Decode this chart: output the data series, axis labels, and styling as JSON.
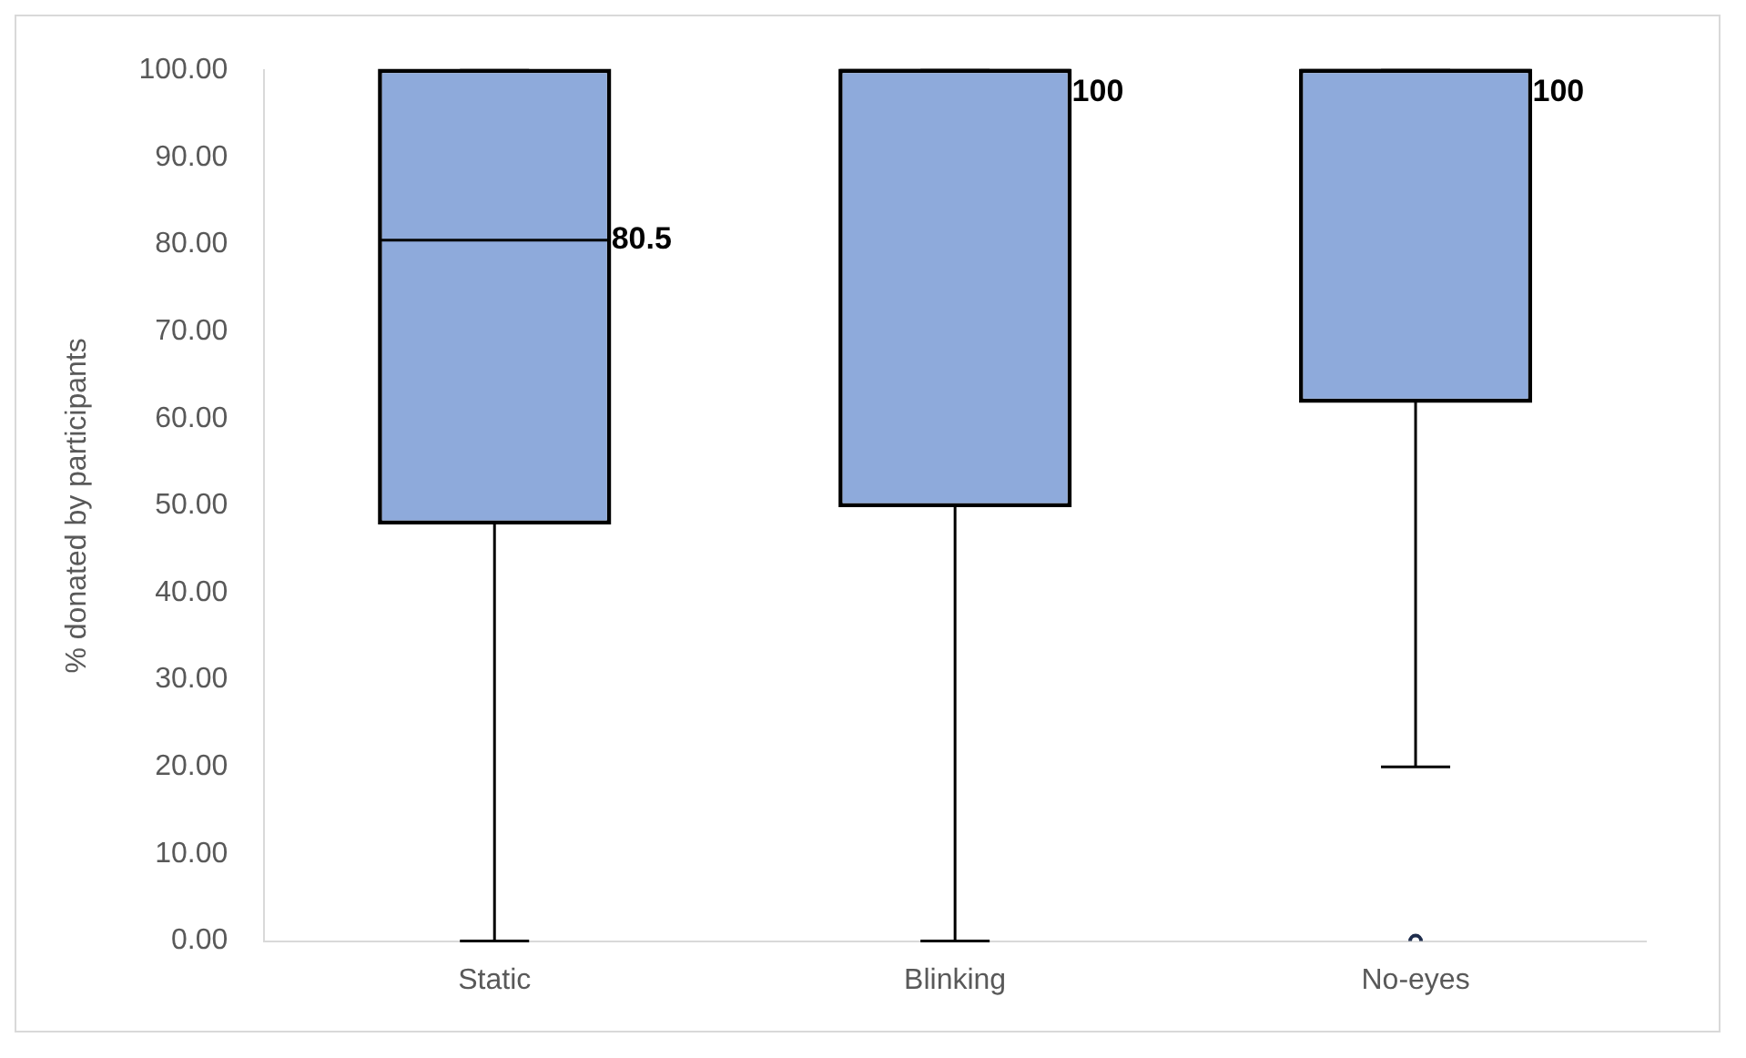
{
  "chart_data": {
    "type": "box",
    "ylabel": "% donated by participants",
    "categories": [
      "Static",
      "Blinking",
      "No-eyes"
    ],
    "color": "#8eaadb",
    "boxes": [
      {
        "low": 0,
        "q1": 48,
        "median": 80.5,
        "q3": 100,
        "high": 100
      },
      {
        "low": 0,
        "q1": 50,
        "median": 100,
        "q3": 100,
        "high": 100
      },
      {
        "low": 20,
        "q1": 62,
        "median": 100,
        "q3": 100,
        "high": 100,
        "outliers": [
          0
        ]
      }
    ],
    "ylim": [
      0,
      100
    ],
    "yticks": [
      {
        "value": 0,
        "label": "0.00"
      },
      {
        "value": 10,
        "label": "10.00"
      },
      {
        "value": 20,
        "label": "20.00"
      },
      {
        "value": 30,
        "label": "30.00"
      },
      {
        "value": 40,
        "label": "40.00"
      },
      {
        "value": 50,
        "label": "50.00"
      },
      {
        "value": 60,
        "label": "60.00"
      },
      {
        "value": 70,
        "label": "70.00"
      },
      {
        "value": 80,
        "label": "80.00"
      },
      {
        "value": 90,
        "label": "90.00"
      },
      {
        "value": 100,
        "label": "100.00"
      }
    ],
    "annotations": [
      "80.5",
      "100",
      "100"
    ]
  }
}
